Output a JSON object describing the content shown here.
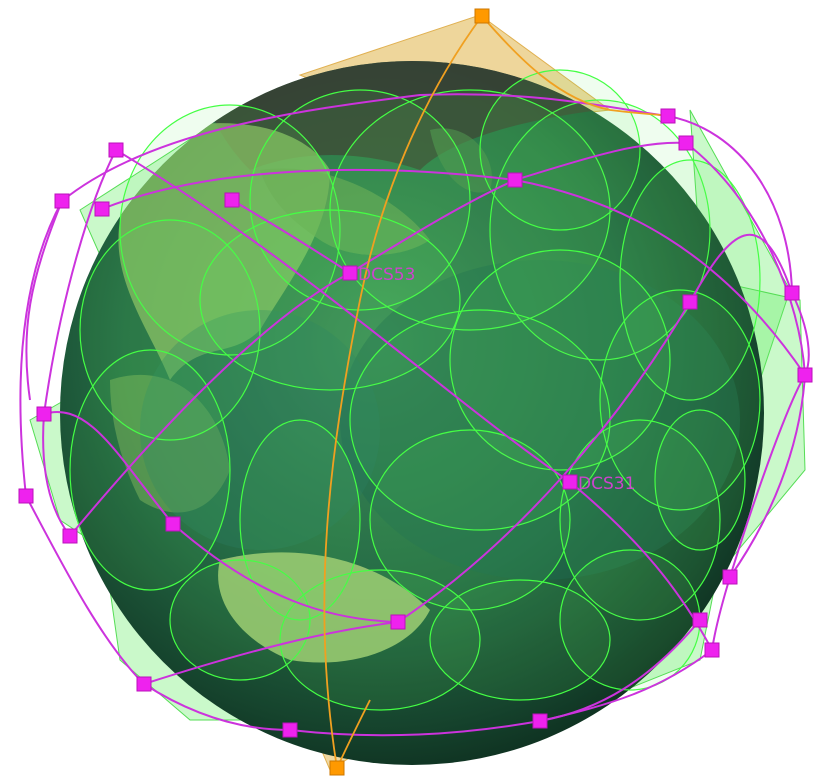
{
  "scene": {
    "colors": {
      "background": "#ffffff",
      "earth_dark": "#0f2e22",
      "earth_mid": "#1f5f3a",
      "land": "#7fae55",
      "ocean": "#2f7a5a",
      "coverage_stroke": "#44ff44",
      "coverage_fill": "#66ee66",
      "orbit": "#cc33dd",
      "satellite": "#ee22ee",
      "polar_orbit": "#f0a020",
      "polar_satellite": "#ff9900",
      "polar_fill": "#e8c87a",
      "label": "#cc44cc"
    },
    "labels": [
      {
        "text": "DCS53"
      },
      {
        "text": "DCS31"
      }
    ]
  }
}
